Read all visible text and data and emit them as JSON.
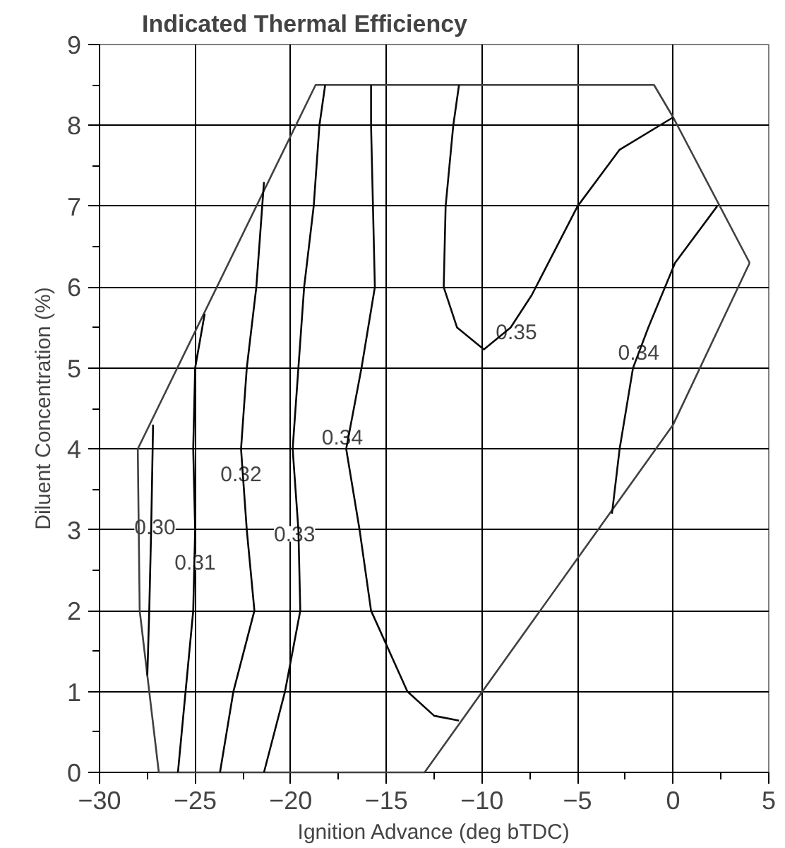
{
  "chart_data": {
    "type": "line",
    "title": "Indicated Thermal Efficiency",
    "xlabel": "Ignition Advance (deg bTDC)",
    "ylabel": "Diluent Concentration (%)",
    "xlim": [
      -30,
      5
    ],
    "ylim": [
      0,
      9
    ],
    "xticks": [
      -30,
      {
        "value": -27.5,
        "label": null
      },
      -25,
      {
        "value": -22.5,
        "label": null
      },
      -20,
      {
        "value": -17.5,
        "label": null
      },
      -15,
      {
        "value": -12.5,
        "label": null
      },
      -10,
      {
        "value": -7.5,
        "label": null
      },
      -5,
      {
        "value": -2.5,
        "label": null
      },
      0,
      {
        "value": 2.5,
        "label": null
      },
      5
    ],
    "yticks": [
      0,
      {
        "value": 0.5,
        "label": null
      },
      1,
      {
        "value": 1.5,
        "label": null
      },
      2,
      {
        "value": 2.5,
        "label": null
      },
      3,
      {
        "value": 3.5,
        "label": null
      },
      4,
      {
        "value": 4.5,
        "label": null
      },
      5,
      {
        "value": 5.5,
        "label": null
      },
      6,
      {
        "value": 6.5,
        "label": null
      },
      7,
      {
        "value": 7.5,
        "label": null
      },
      8,
      {
        "value": 8.5,
        "label": null
      },
      9
    ],
    "grid": true,
    "marker": "none",
    "line_style": "solid",
    "series": [
      {
        "color": "#404040",
        "x": [
          -28,
          -18.7,
          -1,
          0,
          4
        ],
        "values": [
          4,
          8.5,
          8.5,
          8.1,
          6.3
        ]
      },
      {
        "color": "#404040",
        "x": [
          -28,
          -27.9,
          -26.9,
          -13,
          0,
          4
        ],
        "values": [
          4,
          2,
          0,
          0,
          4.3,
          6.3
        ]
      },
      {
        "color": "#000000",
        "x": [
          -27.2,
          -27.3,
          -27.4,
          -27.5
        ],
        "values": [
          4.3,
          3,
          2,
          1.2
        ]
      },
      {
        "color": "#020202",
        "x": [
          -24.5,
          -25.0,
          -25.1,
          -25.0,
          -25.1,
          -25.5,
          -25.9
        ],
        "values": [
          5.67,
          5,
          4,
          3,
          2,
          1,
          0
        ]
      },
      {
        "color": "#040404",
        "x": [
          -21.4,
          -21.8,
          -22.3,
          -22.6,
          -22.3,
          -21.9,
          -23.0,
          -23.7
        ],
        "values": [
          7.3,
          6,
          5,
          4,
          3,
          2,
          1,
          0
        ]
      },
      {
        "color": "#060606",
        "x": [
          -18.2,
          -18.5,
          -18.8,
          -19.3,
          -19.6,
          -19.9,
          -19.6,
          -19.5,
          -20.3,
          -21.4
        ],
        "values": [
          8.5,
          8,
          7,
          6,
          5,
          4,
          3,
          2,
          1,
          0
        ]
      },
      {
        "color": "#080808",
        "x": [
          -15.8,
          -15.8,
          -15.6,
          -16.3,
          -17.1,
          -16.4,
          -15.8,
          -13.9,
          -12.5,
          -11.2
        ],
        "values": [
          8.5,
          8,
          6,
          5,
          4,
          3,
          2,
          1,
          0.7,
          0.64
        ]
      },
      {
        "color": "#0a0a0a",
        "x": [
          -11.2,
          -11.5,
          -11.9,
          -12.0,
          -11.3,
          -9.9,
          -8.5,
          -7.4,
          -5,
          -2.8,
          0
        ],
        "values": [
          8.5,
          8,
          7,
          6,
          5.5,
          5.23,
          5.5,
          5.9,
          7,
          7.7,
          8.1
        ]
      },
      {
        "color": "#0c0c0c",
        "x": [
          2.3,
          0.1,
          -1.3,
          -2.1,
          -2.8,
          -3.2
        ],
        "values": [
          7.0,
          6.3,
          5.5,
          5,
          4,
          3.2
        ]
      }
    ],
    "annotations": [
      {
        "text": "0.30",
        "x": -27.1,
        "y": 3.04
      },
      {
        "text": "0.31",
        "x": -25.0,
        "y": 2.6
      },
      {
        "text": "0.32",
        "x": -22.6,
        "y": 3.7
      },
      {
        "text": "0.33",
        "x": -19.8,
        "y": 2.95
      },
      {
        "text": "0.34",
        "x": -17.3,
        "y": 4.15
      },
      {
        "text": "0.35",
        "x": -8.2,
        "y": 5.45
      },
      {
        "text": "0.34",
        "x": -1.8,
        "y": 5.2
      }
    ]
  }
}
